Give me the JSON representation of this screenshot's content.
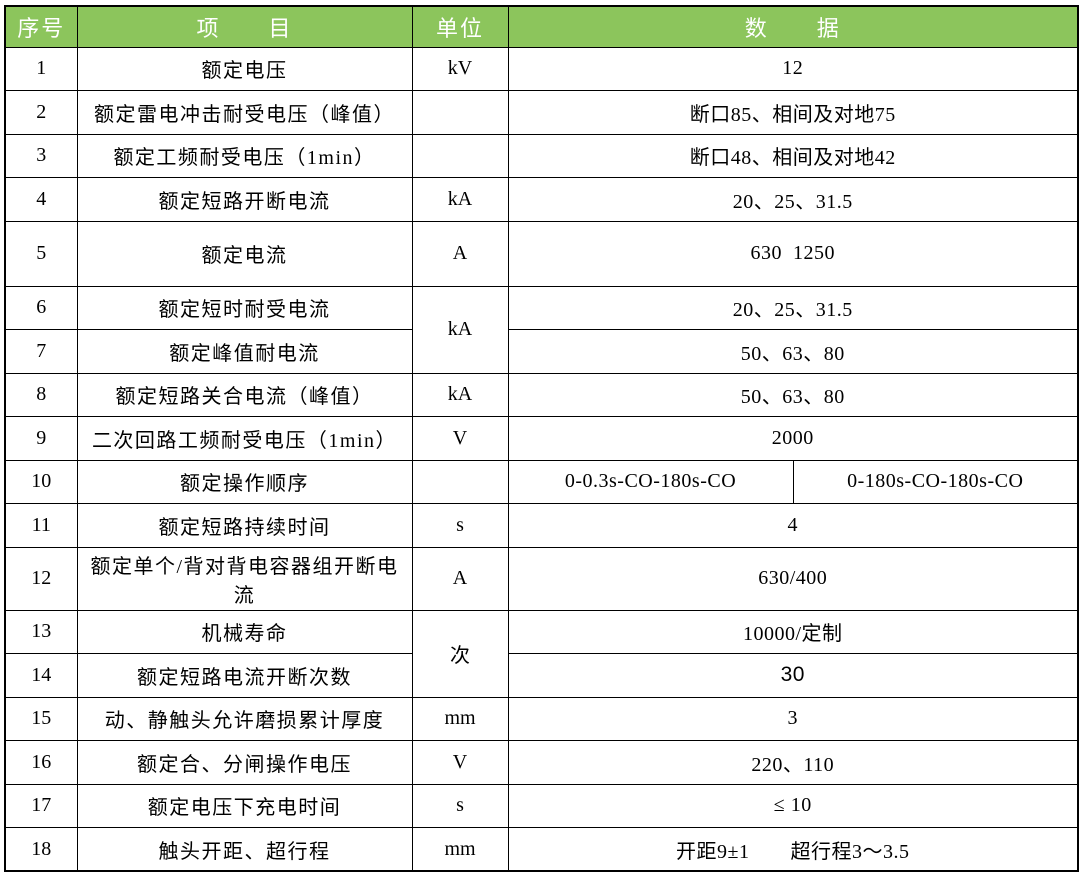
{
  "table": {
    "colors": {
      "header_bg": "#8CC55C",
      "header_text": "#FFFFFF",
      "border": "#000000",
      "body_text": "#000000",
      "row_bg": "#FFFFFF"
    },
    "headers": [
      "序号",
      "项　　目",
      "单位",
      "数　　据"
    ],
    "rows": [
      {
        "no": "1",
        "item": "额定电压",
        "unit": "kV",
        "data": "12"
      },
      {
        "no": "2",
        "item": "额定雷电冲击耐受电压（峰值）",
        "unit": "",
        "data": "断口85、相间及对地75"
      },
      {
        "no": "3",
        "item": "额定工频耐受电压（1min）",
        "unit": "",
        "data": "断口48、相间及对地42"
      },
      {
        "no": "4",
        "item": "额定短路开断电流",
        "unit": "kA",
        "data": "20、25、31.5"
      },
      {
        "no": "5",
        "item": "额定电流",
        "unit": "A",
        "data": "630  1250"
      },
      {
        "no": "6",
        "item": "额定短时耐受电流",
        "unit": "kA",
        "data": "20、25、31.5"
      },
      {
        "no": "7",
        "item": "额定峰值耐电流",
        "data": "50、63、80"
      },
      {
        "no": "8",
        "item": "额定短路关合电流（峰值）",
        "unit": "kA",
        "data": "50、63、80"
      },
      {
        "no": "9",
        "item": "二次回路工频耐受电压（1min）",
        "unit": "V",
        "data": "2000"
      },
      {
        "no": "10",
        "item": "额定操作顺序",
        "unit": "",
        "data_left": "0-0.3s-CO-180s-CO",
        "data_right": "0-180s-CO-180s-CO"
      },
      {
        "no": "11",
        "item": "额定短路持续时间",
        "unit": "s",
        "data": "4"
      },
      {
        "no": "12",
        "item": "额定单个/背对背电容器组开断电流",
        "unit": "A",
        "data": "630/400"
      },
      {
        "no": "13",
        "item": "机械寿命",
        "unit": "次",
        "data": "10000/定制"
      },
      {
        "no": "14",
        "item": "额定短路电流开断次数",
        "data": "30"
      },
      {
        "no": "15",
        "item": "动、静触头允许磨损累计厚度",
        "unit": "mm",
        "data": "3"
      },
      {
        "no": "16",
        "item": "额定合、分闸操作电压",
        "unit": "V",
        "data": "220、110"
      },
      {
        "no": "17",
        "item": "额定电压下充电时间",
        "unit": "s",
        "data": "≤ 10"
      },
      {
        "no": "18",
        "item": "触头开距、超行程",
        "unit": "mm",
        "data": "开距9±1　　超行程3～3.5"
      }
    ]
  }
}
